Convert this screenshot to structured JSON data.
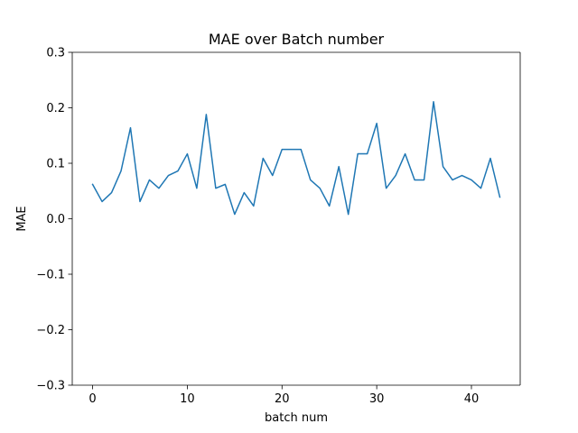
{
  "chart_data": {
    "type": "line",
    "title": "MAE over Batch number",
    "xlabel": "batch num",
    "ylabel": "MAE",
    "xlim": [
      -2.15,
      45.15
    ],
    "ylim": [
      -0.3,
      0.3
    ],
    "xticks": [
      0,
      10,
      20,
      30,
      40
    ],
    "yticks": [
      -0.3,
      -0.2,
      -0.1,
      0.0,
      0.1,
      0.2,
      0.3
    ],
    "xtick_labels": [
      "0",
      "10",
      "20",
      "30",
      "40"
    ],
    "ytick_labels": [
      "−0.3",
      "−0.2",
      "−0.1",
      "0.0",
      "0.1",
      "0.2",
      "0.3"
    ],
    "grid": false,
    "line_color": "#1f77b4",
    "series": [
      {
        "x": [
          0,
          1,
          2,
          3,
          4,
          5,
          6,
          7,
          8,
          9,
          10,
          11,
          12,
          13,
          14,
          15,
          16,
          17,
          18,
          19,
          20,
          21,
          22,
          23,
          24,
          25,
          26,
          27,
          28,
          29,
          30,
          31,
          32,
          33,
          34,
          35,
          36,
          37,
          38,
          39,
          40,
          41,
          42,
          43
        ],
        "values": [
          0.062,
          0.031,
          0.047,
          0.086,
          0.164,
          0.031,
          0.07,
          0.055,
          0.078,
          0.086,
          0.117,
          0.055,
          0.188,
          0.055,
          0.062,
          0.008,
          0.047,
          0.023,
          0.109,
          0.078,
          0.125,
          0.125,
          0.125,
          0.07,
          0.055,
          0.023,
          0.094,
          0.008,
          0.117,
          0.117,
          0.172,
          0.055,
          0.078,
          0.117,
          0.07,
          0.07,
          0.211,
          0.094,
          0.07,
          0.078,
          0.07,
          0.055,
          0.109,
          0.039
        ]
      }
    ]
  }
}
